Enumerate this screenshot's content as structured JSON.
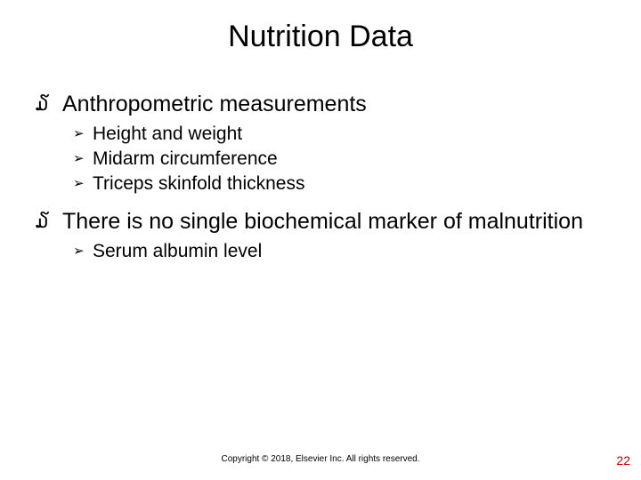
{
  "title": "Nutrition Data",
  "bullets": {
    "l1_glyph": "໓",
    "l2_glyph": "➢",
    "items": [
      {
        "text": "Anthropometric measurements",
        "sub": [
          "Height and weight",
          "Midarm circumference",
          "Triceps skinfold thickness"
        ]
      },
      {
        "text": "There is no single biochemical marker of malnutrition",
        "sub": [
          "Serum albumin level"
        ]
      }
    ]
  },
  "footer": "Copyright © 2018, Elsevier Inc. All rights reserved.",
  "page_number": "22",
  "colors": {
    "text": "#000000",
    "page_number": "#c00000",
    "background": "#ffffff"
  },
  "fonts": {
    "title_size": 34,
    "l1_size": 25,
    "l2_size": 21,
    "footer_size": 10,
    "pagenum_size": 14
  }
}
